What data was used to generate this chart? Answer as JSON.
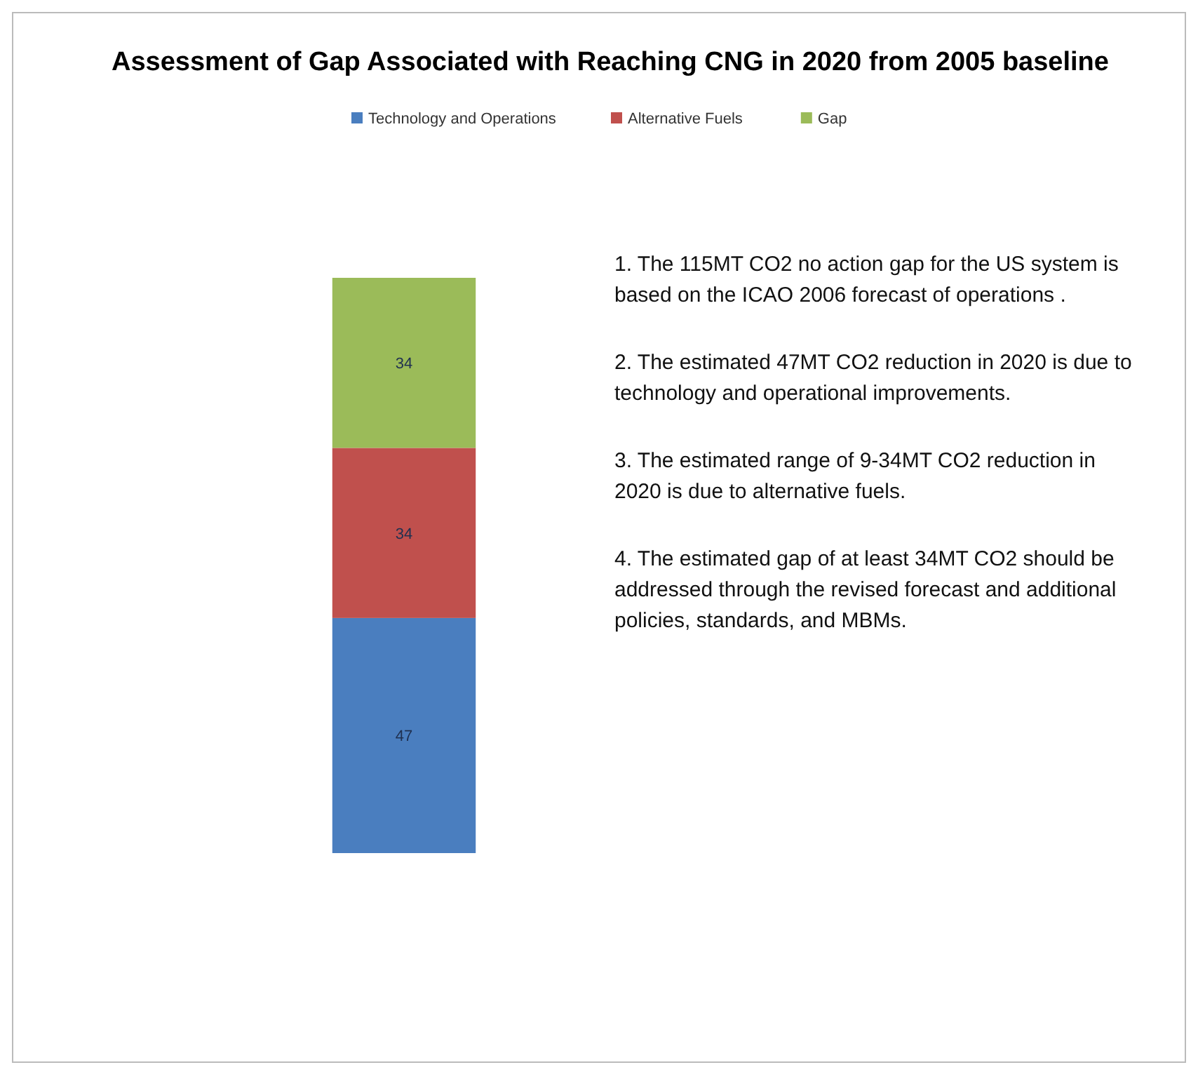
{
  "chart_data": {
    "type": "bar",
    "stacked": true,
    "title": "Assessment of Gap Associated with Reaching CNG in 2020 from 2005 baseline",
    "categories": [
      null
    ],
    "series": [
      {
        "name": "Technology and Operations",
        "color": "#4a7ebf",
        "values": [
          47
        ]
      },
      {
        "name": "Alternative Fuels",
        "color": "#c0504d",
        "values": [
          34
        ]
      },
      {
        "name": "Gap",
        "color": "#9bbb59",
        "values": [
          34
        ]
      }
    ],
    "data_labels": true,
    "legend": "top",
    "annotations": [
      "1. The 115MT CO2 no action gap for the US system is based on the ICAO 2006 forecast of operations .",
      "2. The estimated 47MT CO2 reduction in 2020 is due to technology and operational improvements.",
      "3. The estimated range of 9-34MT CO2 reduction in 2020 is due to alternative fuels.",
      "4. The estimated gap of at least 34MT CO2 should be addressed through the revised forecast and additional policies, standards, and MBMs."
    ]
  }
}
